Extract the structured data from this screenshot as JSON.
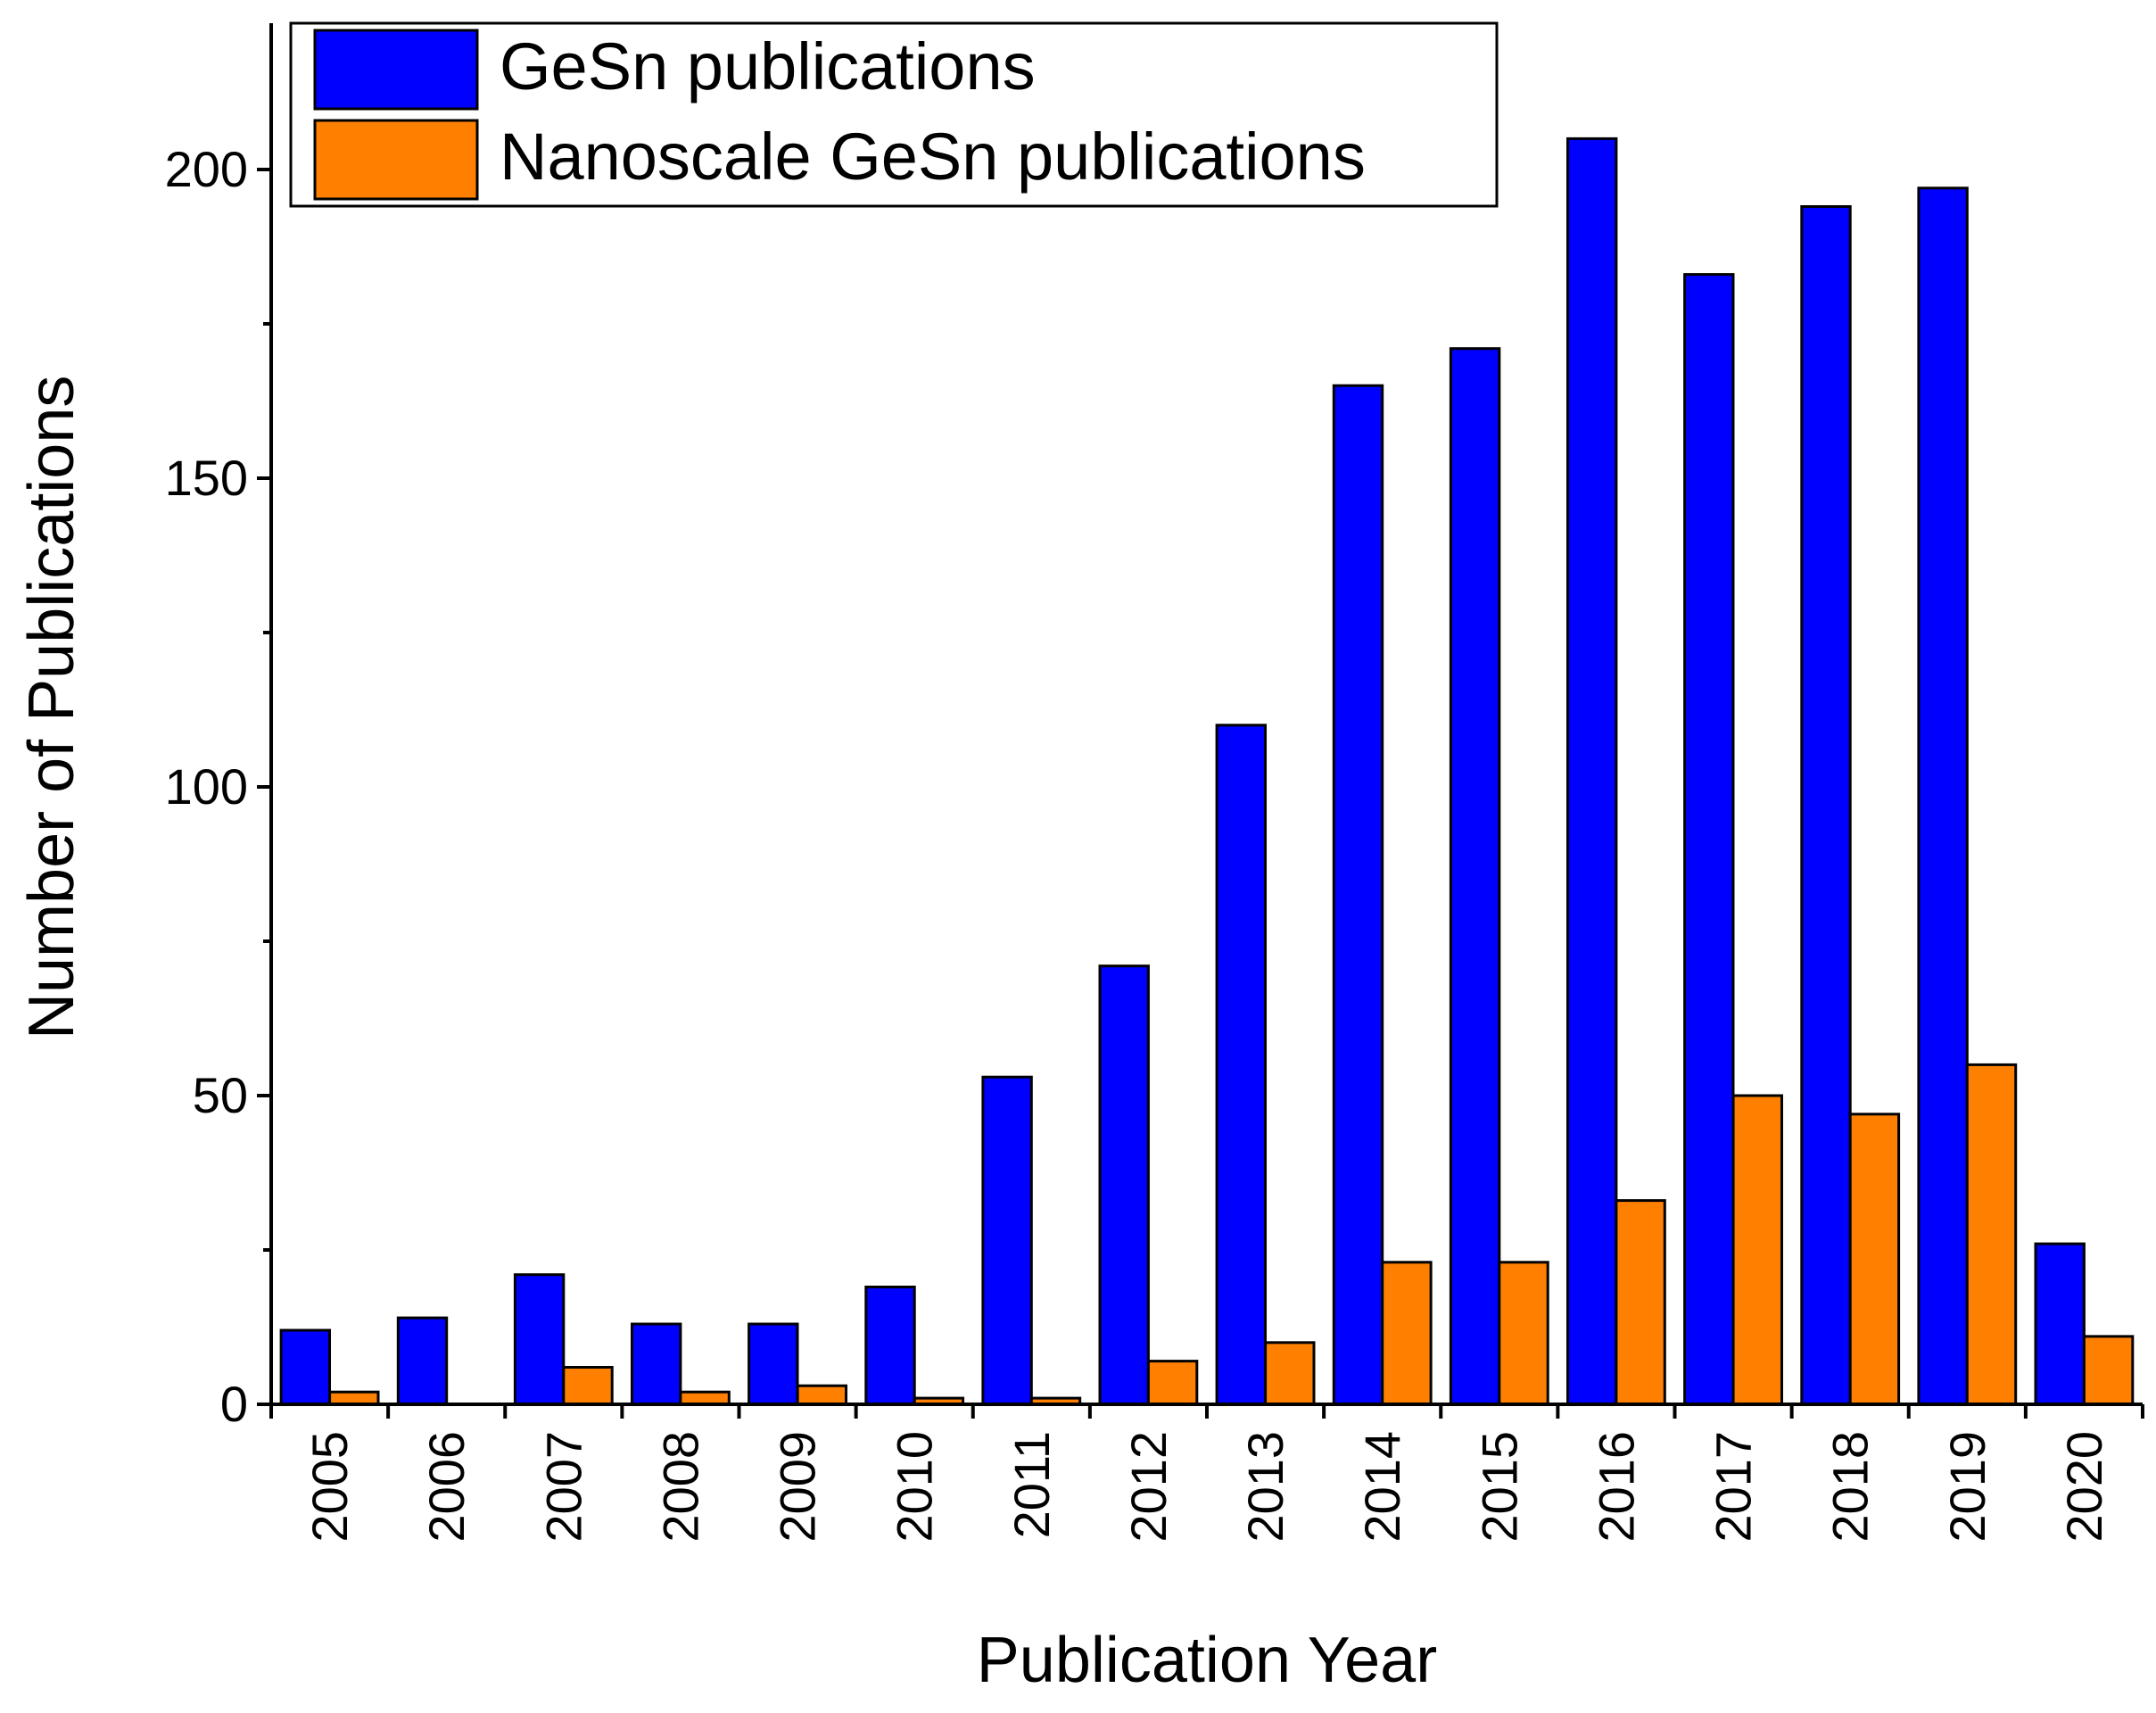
{
  "chart_data": {
    "type": "bar",
    "title": "",
    "xlabel": "Publication Year",
    "ylabel": "Number of Publications",
    "ylim": [
      0,
      220
    ],
    "yticks": [
      0,
      50,
      100,
      150,
      200
    ],
    "categories": [
      "2005",
      "2006",
      "2007",
      "2008",
      "2009",
      "2010",
      "2011",
      "2012",
      "2013",
      "2014",
      "2015",
      "2016",
      "2017",
      "2018",
      "2019",
      "2020"
    ],
    "series": [
      {
        "name": "GeSn publications",
        "color": "#0000FF",
        "values": [
          12,
          14,
          21,
          13,
          13,
          19,
          53,
          71,
          110,
          165,
          171,
          205,
          183,
          194,
          197,
          26
        ]
      },
      {
        "name": "Nanoscale GeSn publications",
        "color": "#FF8000",
        "values": [
          2,
          0,
          6,
          2,
          3,
          1,
          1,
          7,
          10,
          23,
          23,
          33,
          50,
          47,
          55,
          11
        ]
      }
    ],
    "legend_position": "top-left",
    "grid": false
  }
}
